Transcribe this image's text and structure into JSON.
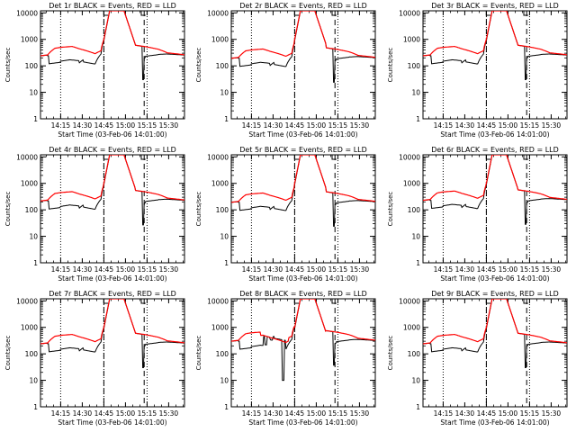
{
  "chart_data": {
    "type": "line",
    "x_unit": "minutes after 14:01:00",
    "x_range": [
      0,
      100
    ],
    "x_ticks": [
      {
        "x": 14,
        "label": "14:15"
      },
      {
        "x": 29,
        "label": "14:30"
      },
      {
        "x": 44,
        "label": "14:45"
      },
      {
        "x": 59,
        "label": "15:00"
      },
      {
        "x": 74,
        "label": "15:15"
      },
      {
        "x": 89,
        "label": "15:30"
      }
    ],
    "y_scale": "log",
    "ylim": [
      1,
      12000
    ],
    "y_ticks": [
      {
        "v": 1,
        "label": "1"
      },
      {
        "v": 10,
        "label": "10"
      },
      {
        "v": 100,
        "label": "100"
      },
      {
        "v": 1000,
        "label": "1000"
      },
      {
        "v": 10000,
        "label": "10000"
      }
    ],
    "ylabel": "Counts/sec",
    "xlabel": "Start Time (03-Feb-06 14:01:00)",
    "dotted_lines_x": [
      14,
      44,
      74
    ],
    "dashed_lines_x": [
      44,
      72
    ],
    "colors": {
      "events": "#000000",
      "lld": "#ff0000"
    },
    "panels": [
      {
        "title": "Det 1r BLACK = Events, RED = LLD",
        "scale": 1.0,
        "glitch": 0
      },
      {
        "title": "Det 2r BLACK = Events, RED = LLD",
        "scale": 0.8,
        "glitch": 0
      },
      {
        "title": "Det 3r BLACK = Events, RED = LLD",
        "scale": 1.0,
        "glitch": 0
      },
      {
        "title": "Det 4r BLACK = Events, RED = LLD",
        "scale": 0.9,
        "glitch": 0
      },
      {
        "title": "Det 5r BLACK = Events, RED = LLD",
        "scale": 0.8,
        "glitch": 0
      },
      {
        "title": "Det 6r BLACK = Events, RED = LLD",
        "scale": 0.95,
        "glitch": 0
      },
      {
        "title": "Det 7r BLACK = Events, RED = LLD",
        "scale": 1.0,
        "glitch": 0
      },
      {
        "title": "Det 8r BLACK = Events, RED = LLD",
        "scale": 1.25,
        "glitch": 1
      },
      {
        "title": "Det 9r BLACK = Events, RED = LLD",
        "scale": 1.0,
        "glitch": 0
      }
    ]
  }
}
